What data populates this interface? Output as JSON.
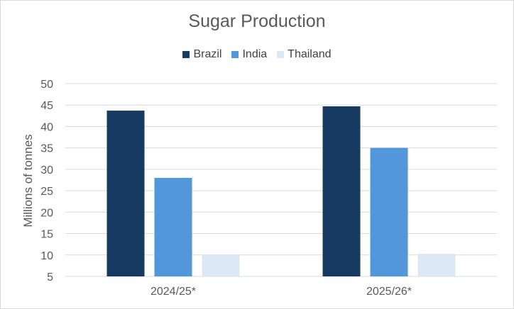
{
  "chart_data": {
    "type": "bar",
    "title": "Sugar Production",
    "ylabel": "Millions of tonnes",
    "xlabel": "",
    "categories": [
      "2024/25*",
      "2025/26*"
    ],
    "series": [
      {
        "name": "Brazil",
        "color": "#173a63",
        "values": [
          43.7,
          44.7
        ]
      },
      {
        "name": "India",
        "color": "#5197da",
        "values": [
          28.0,
          35.0
        ]
      },
      {
        "name": "Thailand",
        "color": "#dce8f5",
        "values": [
          10.0,
          10.3
        ]
      }
    ],
    "ylim": [
      5,
      50
    ],
    "yticks": [
      50,
      45,
      40,
      35,
      30,
      25,
      20,
      15,
      10,
      5
    ],
    "grid": true,
    "legend_position": "top"
  }
}
